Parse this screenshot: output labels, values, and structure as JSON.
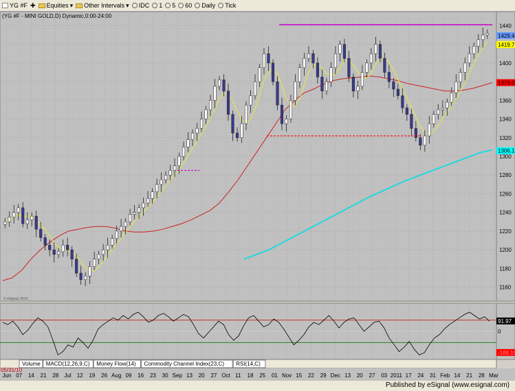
{
  "toolbar": {
    "symbol_box": "YG #F",
    "equities_label": "Equities",
    "intervals_label": "Other Intervals",
    "idc_label": "IDC",
    "btn1": "1",
    "btn5": "5",
    "btn60": "60",
    "daily_label": "Daily",
    "tick_label": "Tick"
  },
  "chart_header": "(YG #F - MINI GOLD,D) Dynamic,0:00-24:00",
  "watermark": "© eSignal, 2010",
  "indicator_tabs": [
    "Volume",
    "MACD(12,26,9,C)",
    "Money Flow(14)",
    "Commodity Channel Index(23,C)",
    "RSI(14,C)"
  ],
  "status": "Published by eSignal (www.esignal.com)",
  "colors": {
    "up": "#3a3a3a",
    "down": "#3a3a8a",
    "resistance": "#cc00cc",
    "support": "#ff0000",
    "ma_short": "#e8e840",
    "ma_mid": "#cc2020",
    "ma_long": "#20d8e0",
    "bg": "#c0c0c0",
    "grid": "#aaaaaa"
  },
  "chart_data": {
    "type": "candlestick",
    "title": "(YG #F - MINI GOLD,D) Dynamic,0:00-24:00",
    "ylim": [
      1145,
      1455
    ],
    "yticks": [
      1160,
      1180,
      1200,
      1220,
      1240,
      1260,
      1280,
      1300,
      1320,
      1340,
      1360,
      1380,
      1400,
      1420,
      1440
    ],
    "x_labels": [
      "Jun",
      "07",
      "14",
      "21",
      "28",
      "Jul",
      "12",
      "19",
      "26",
      "Aug",
      "09",
      "16",
      "23",
      "30",
      "Sep",
      "13",
      "20",
      "27",
      "Oct",
      "11",
      "18",
      "25",
      "01",
      "Nov",
      "15",
      "22",
      "29",
      "Dec",
      "13",
      "20",
      "27",
      "03",
      "2011",
      "17",
      "24",
      "31",
      "Feb",
      "14",
      "21",
      "28",
      "Mar"
    ],
    "start_date_label": "05/31/10",
    "price_labels": [
      {
        "value": 1429.4,
        "color": "#6699ff"
      },
      {
        "value": 1419.7,
        "color": "#ffff00"
      },
      {
        "value": 1379.0,
        "color": "#ff0000"
      },
      {
        "value": 1306.1,
        "color": "#00ffff"
      }
    ],
    "close_path": [
      1230,
      1235,
      1240,
      1245,
      1228,
      1232,
      1236,
      1222,
      1213,
      1205,
      1200,
      1195,
      1198,
      1205,
      1200,
      1190,
      1175,
      1168,
      1172,
      1182,
      1190,
      1195,
      1200,
      1205,
      1212,
      1220,
      1225,
      1230,
      1238,
      1240,
      1245,
      1250,
      1255,
      1262,
      1270,
      1275,
      1280,
      1285,
      1290,
      1300,
      1310,
      1318,
      1325,
      1330,
      1340,
      1350,
      1360,
      1375,
      1382,
      1370,
      1345,
      1325,
      1320,
      1335,
      1355,
      1365,
      1380,
      1395,
      1410,
      1400,
      1380,
      1355,
      1335,
      1340,
      1360,
      1380,
      1395,
      1405,
      1410,
      1400,
      1385,
      1370,
      1380,
      1395,
      1410,
      1420,
      1405,
      1385,
      1370,
      1375,
      1390,
      1400,
      1410,
      1420,
      1405,
      1390,
      1380,
      1372,
      1365,
      1352,
      1345,
      1330,
      1320,
      1312,
      1322,
      1335,
      1345,
      1350,
      1352,
      1358,
      1368,
      1380,
      1390,
      1400,
      1410,
      1418,
      1425,
      1430,
      1432
    ],
    "resistance_line": {
      "value": 1441,
      "color": "#cc00cc"
    },
    "support_line": {
      "value": 1322,
      "color": "#ff0000",
      "style": "dashed"
    },
    "short_resistance": {
      "value": 1285,
      "color": "#cc00cc",
      "style": "dashed"
    },
    "ma_mid_path": [
      1167,
      1170,
      1178,
      1190,
      1200,
      1208,
      1215,
      1220,
      1222,
      1224,
      1225,
      1225,
      1223,
      1220,
      1219,
      1219,
      1220,
      1222,
      1225,
      1228,
      1232,
      1237,
      1242,
      1250,
      1262,
      1275,
      1290,
      1305,
      1320,
      1335,
      1350,
      1360,
      1368,
      1372,
      1377,
      1381,
      1383,
      1384,
      1385,
      1386,
      1385,
      1383,
      1381,
      1378,
      1376,
      1374,
      1372,
      1370,
      1370,
      1371,
      1373,
      1376,
      1379
    ],
    "ma_long_path": [
      1190,
      1195,
      1200,
      1207,
      1214,
      1221,
      1228,
      1235,
      1242,
      1249,
      1256,
      1262,
      1268,
      1274,
      1279,
      1284,
      1289,
      1294,
      1299,
      1304,
      1307
    ],
    "osc_ylim": [
      -250,
      250
    ],
    "osc_levels": [
      {
        "value": 100,
        "color": "#cc3030"
      },
      {
        "value": 0,
        "color": "#cccccc"
      },
      {
        "value": -100,
        "color": "#208020"
      }
    ],
    "osc_value_labels": [
      {
        "value": "91.97",
        "color": "#ffffff"
      },
      {
        "value": "0",
        "color": "#000000"
      },
      {
        "value": "-188.19",
        "color": "#ff8080"
      }
    ],
    "osc_path": [
      80,
      60,
      90,
      40,
      -30,
      10,
      70,
      120,
      90,
      40,
      -80,
      -210,
      -180,
      -120,
      -140,
      -60,
      -100,
      -150,
      -80,
      20,
      60,
      90,
      120,
      100,
      140,
      110,
      150,
      170,
      130,
      80,
      100,
      140,
      160,
      130,
      90,
      120,
      150,
      130,
      60,
      -20,
      -60,
      -10,
      40,
      90,
      60,
      -30,
      -80,
      -40,
      50,
      120,
      140,
      90,
      40,
      60,
      110,
      80,
      20,
      -50,
      -120,
      -80,
      -30,
      40,
      80,
      60,
      100,
      140,
      90,
      30,
      80,
      110,
      120,
      60,
      0,
      40,
      80,
      90,
      30,
      -60,
      -120,
      -180,
      -140,
      -90,
      -160,
      -210,
      -190,
      -120,
      -60,
      -30,
      20,
      60,
      90,
      120,
      150,
      170,
      140,
      110,
      130,
      90
    ]
  }
}
